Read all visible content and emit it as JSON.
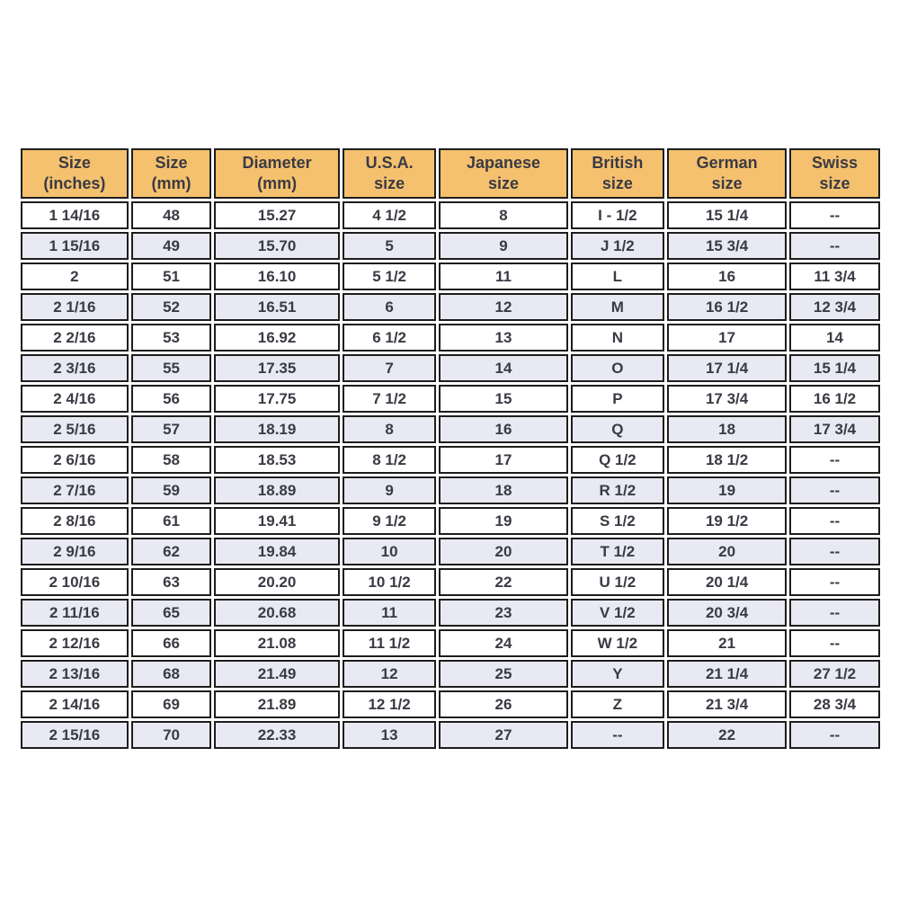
{
  "colors": {
    "header_bg": "#f5c16e",
    "row_bg": "#ffffff",
    "row_alt_bg": "#e9e9f3",
    "border": "#1d1d1d",
    "text": "#3a3a44"
  },
  "chart_data": {
    "type": "table",
    "columns": [
      "Size\n(inches)",
      "Size\n(mm)",
      "Diameter\n(mm)",
      "U.S.A.\nsize",
      "Japanese\nsize",
      "British\nsize",
      "German\nsize",
      "Swiss\nsize"
    ],
    "rows": [
      [
        "1 14/16",
        "48",
        "15.27",
        "4 1/2",
        "8",
        "I - 1/2",
        "15 1/4",
        "--"
      ],
      [
        "1 15/16",
        "49",
        "15.70",
        "5",
        "9",
        "J 1/2",
        "15 3/4",
        "--"
      ],
      [
        "2",
        "51",
        "16.10",
        "5 1/2",
        "11",
        "L",
        "16",
        "11 3/4"
      ],
      [
        "2 1/16",
        "52",
        "16.51",
        "6",
        "12",
        "M",
        "16 1/2",
        "12 3/4"
      ],
      [
        "2 2/16",
        "53",
        "16.92",
        "6 1/2",
        "13",
        "N",
        "17",
        "14"
      ],
      [
        "2 3/16",
        "55",
        "17.35",
        "7",
        "14",
        "O",
        "17 1/4",
        "15 1/4"
      ],
      [
        "2 4/16",
        "56",
        "17.75",
        "7 1/2",
        "15",
        "P",
        "17 3/4",
        "16 1/2"
      ],
      [
        "2 5/16",
        "57",
        "18.19",
        "8",
        "16",
        "Q",
        "18",
        "17 3/4"
      ],
      [
        "2 6/16",
        "58",
        "18.53",
        "8 1/2",
        "17",
        "Q 1/2",
        "18 1/2",
        "--"
      ],
      [
        "2 7/16",
        "59",
        "18.89",
        "9",
        "18",
        "R 1/2",
        "19",
        "--"
      ],
      [
        "2 8/16",
        "61",
        "19.41",
        "9 1/2",
        "19",
        "S 1/2",
        "19 1/2",
        "--"
      ],
      [
        "2 9/16",
        "62",
        "19.84",
        "10",
        "20",
        "T 1/2",
        "20",
        "--"
      ],
      [
        "2 10/16",
        "63",
        "20.20",
        "10 1/2",
        "22",
        "U 1/2",
        "20 1/4",
        "--"
      ],
      [
        "2 11/16",
        "65",
        "20.68",
        "11",
        "23",
        "V 1/2",
        "20 3/4",
        "--"
      ],
      [
        "2 12/16",
        "66",
        "21.08",
        "11 1/2",
        "24",
        "W 1/2",
        "21",
        "--"
      ],
      [
        "2 13/16",
        "68",
        "21.49",
        "12",
        "25",
        "Y",
        "21 1/4",
        "27 1/2"
      ],
      [
        "2 14/16",
        "69",
        "21.89",
        "12 1/2",
        "26",
        "Z",
        "21 3/4",
        "28 3/4"
      ],
      [
        "2 15/16",
        "70",
        "22.33",
        "13",
        "27",
        "--",
        "22",
        "--"
      ]
    ]
  }
}
